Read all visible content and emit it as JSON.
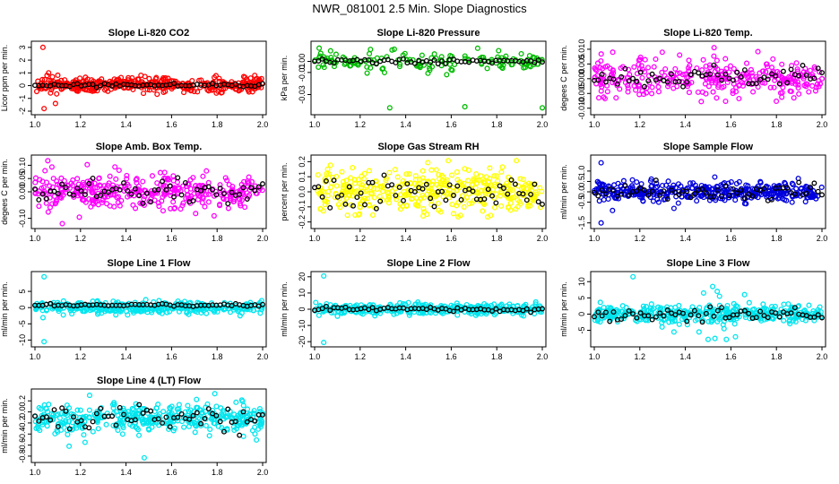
{
  "title": "NWR_081001  2.5 Min. Slope Diagnostics",
  "chart_data": [
    {
      "type": "scatter",
      "title": "Slope Li-820 CO2",
      "ylabel": "Licor ppm per min.",
      "color": "#ff0000",
      "xlim": [
        1.0,
        2.0
      ],
      "ylim": [
        -2,
        3.2
      ],
      "xticks": [
        1.0,
        1.2,
        1.4,
        1.6,
        1.8,
        2.0
      ],
      "yticks": [
        -2,
        -1,
        0,
        1,
        2,
        3
      ],
      "xtick_labels": [
        "1.0",
        "1.2",
        "1.4",
        "1.6",
        "1.8",
        "2.0"
      ],
      "ytick_labels": [
        "-2",
        "-1",
        "0",
        "1",
        "2",
        "3"
      ],
      "spread": 0.28,
      "black_spread": 0.08,
      "center": 0.05,
      "n_points": 400,
      "outliers": [
        [
          1.035,
          3.0
        ],
        [
          1.04,
          -1.8
        ],
        [
          1.09,
          -1.4
        ],
        [
          1.06,
          1.0
        ]
      ]
    },
    {
      "type": "scatter",
      "title": "Slope Li-820 Pressure",
      "ylabel": "kPa per min.",
      "color": "#00bb00",
      "xlim": [
        1.0,
        2.0
      ],
      "ylim": [
        -0.045,
        0.015
      ],
      "xticks": [
        1.0,
        1.2,
        1.4,
        1.6,
        1.8,
        2.0
      ],
      "yticks": [
        0.0,
        -0.01,
        -0.03
      ],
      "xtick_labels": [
        "1.0",
        "1.2",
        "1.4",
        "1.6",
        "1.8",
        "2.0"
      ],
      "ytick_labels": [
        "0.00",
        "-0.01",
        "-0.03"
      ],
      "spread": 0.004,
      "black_spread": 0.001,
      "center": 0.0,
      "n_points": 150,
      "outliers": [
        [
          1.33,
          -0.042
        ],
        [
          1.66,
          -0.041
        ],
        [
          2.0,
          -0.042
        ],
        [
          1.02,
          0.012
        ],
        [
          1.35,
          0.011
        ],
        [
          1.58,
          -0.012
        ]
      ]
    },
    {
      "type": "scatter",
      "title": "Slope Li-820 Temp.",
      "ylabel": "degees C per min.",
      "color": "#ff00ff",
      "xlim": [
        1.0,
        2.0
      ],
      "ylim": [
        -0.011,
        0.0115
      ],
      "xticks": [
        1.0,
        1.2,
        1.4,
        1.6,
        1.8,
        2.0
      ],
      "yticks": [
        -0.01,
        -0.005,
        0.0,
        0.005,
        0.01
      ],
      "xtick_labels": [
        "1.0",
        "1.2",
        "1.4",
        "1.6",
        "1.8",
        "2.0"
      ],
      "ytick_labels": [
        "-0.010",
        "-0.005",
        "0.000",
        "0.005",
        "0.010"
      ],
      "spread": 0.0032,
      "black_spread": 0.0016,
      "center": 0.0005,
      "n_points": 320,
      "outliers": []
    },
    {
      "type": "scatter",
      "title": "Slope Amb. Box Temp.",
      "ylabel": "degees C per min.",
      "color": "#ff00ff",
      "xlim": [
        1.0,
        2.0
      ],
      "ylim": [
        -0.125,
        0.125
      ],
      "xticks": [
        1.0,
        1.2,
        1.4,
        1.6,
        1.8,
        2.0
      ],
      "yticks": [
        -0.1,
        0.0,
        0.05,
        0.1
      ],
      "xtick_labels": [
        "1.0",
        "1.2",
        "1.4",
        "1.6",
        "1.8",
        "2.0"
      ],
      "ytick_labels": [
        "-0.10",
        "0.00",
        "0.05",
        "0.10"
      ],
      "spread": 0.035,
      "black_spread": 0.025,
      "center": 0.0,
      "n_points": 360,
      "outliers": [
        [
          1.12,
          -0.12
        ]
      ]
    },
    {
      "type": "scatter",
      "title": "Slope Gas Stream RH",
      "ylabel": "percent per min.",
      "color": "#ffff00",
      "xlim": [
        1.0,
        2.0
      ],
      "ylim": [
        -0.22,
        0.22
      ],
      "xticks": [
        1.0,
        1.2,
        1.4,
        1.6,
        1.8,
        2.0
      ],
      "yticks": [
        -0.2,
        -0.1,
        0.0,
        0.1,
        0.2
      ],
      "xtick_labels": [
        "1.0",
        "1.2",
        "1.4",
        "1.6",
        "1.8",
        "2.0"
      ],
      "ytick_labels": [
        "-0.2",
        "-0.1",
        "0.0",
        "0.1",
        "0.2"
      ],
      "spread": 0.07,
      "black_spread": 0.05,
      "center": 0.0,
      "n_points": 380,
      "outliers": []
    },
    {
      "type": "scatter",
      "title": "Slope Sample Flow",
      "ylabel": "ml/min per min.",
      "color": "#0000dd",
      "xlim": [
        1.0,
        2.0
      ],
      "ylim": [
        -1.6,
        1.6
      ],
      "xticks": [
        1.0,
        1.2,
        1.4,
        1.6,
        1.8,
        2.0
      ],
      "yticks": [
        -1.5,
        -0.5,
        0.0,
        0.5,
        1.0
      ],
      "xtick_labels": [
        "1.0",
        "1.2",
        "1.4",
        "1.6",
        "1.8",
        "2.0"
      ],
      "ytick_labels": [
        "-1.5",
        "-0.5",
        "0.0",
        "0.5",
        "1.0"
      ],
      "spread": 0.22,
      "black_spread": 0.18,
      "center": 0.0,
      "n_points": 400,
      "outliers": [
        [
          1.03,
          1.4
        ],
        [
          1.03,
          -1.5
        ],
        [
          1.08,
          -0.9
        ],
        [
          1.35,
          -0.8
        ]
      ]
    },
    {
      "type": "scatter",
      "title": "Slope Line 1 Flow",
      "ylabel": "ml/min per min.",
      "color": "#00e5ee",
      "xlim": [
        1.0,
        2.0
      ],
      "ylim": [
        -11,
        10
      ],
      "xticks": [
        1.0,
        1.2,
        1.4,
        1.6,
        1.8,
        2.0
      ],
      "yticks": [
        -10,
        -5,
        0,
        5
      ],
      "xtick_labels": [
        "1.0",
        "1.2",
        "1.4",
        "1.6",
        "1.8",
        "2.0"
      ],
      "ytick_labels": [
        "-10",
        "-5",
        "0",
        "5"
      ],
      "spread": 0.9,
      "black_spread": 0.2,
      "black_center": 0.8,
      "center": 0.0,
      "n_points": 380,
      "outliers": [
        [
          1.04,
          9.5
        ],
        [
          1.04,
          -10.5
        ]
      ]
    },
    {
      "type": "scatter",
      "title": "Slope Line 2 Flow",
      "ylabel": "ml/min per min.",
      "color": "#00e5ee",
      "xlim": [
        1.0,
        2.0
      ],
      "ylim": [
        -21,
        21
      ],
      "xticks": [
        1.0,
        1.2,
        1.4,
        1.6,
        1.8,
        2.0
      ],
      "yticks": [
        -20,
        -10,
        0,
        10,
        20
      ],
      "xtick_labels": [
        "1.0",
        "1.2",
        "1.4",
        "1.6",
        "1.8",
        "2.0"
      ],
      "ytick_labels": [
        "-20",
        "-10",
        "0",
        "10",
        "20"
      ],
      "spread": 1.6,
      "black_spread": 0.6,
      "center": 0.0,
      "n_points": 360,
      "outliers": [
        [
          1.04,
          20.5
        ],
        [
          1.04,
          -20.5
        ]
      ]
    },
    {
      "type": "scatter",
      "title": "Slope Line 3 Flow",
      "ylabel": "ml/min per min.",
      "color": "#00e5ee",
      "xlim": [
        1.0,
        2.0
      ],
      "ylim": [
        -9,
        12
      ],
      "xticks": [
        1.0,
        1.2,
        1.4,
        1.6,
        1.8,
        2.0
      ],
      "yticks": [
        -5,
        0,
        5,
        10
      ],
      "xtick_labels": [
        "1.0",
        "1.2",
        "1.4",
        "1.6",
        "1.8",
        "2.0"
      ],
      "ytick_labels": [
        "-5",
        "0",
        "5",
        "10"
      ],
      "spread": 1.3,
      "black_spread": 1.0,
      "center": 0.0,
      "n_points": 380,
      "outliers": [
        [
          1.17,
          11.5
        ],
        [
          1.52,
          8.5
        ],
        [
          1.54,
          7.0
        ],
        [
          1.5,
          -7.8
        ],
        [
          1.53,
          -7.5
        ],
        [
          1.58,
          -7.8
        ],
        [
          1.46,
          -5.5
        ],
        [
          1.55,
          5.5
        ],
        [
          1.57,
          -4.5
        ],
        [
          1.62,
          -7.0
        ],
        [
          1.66,
          6.0
        ],
        [
          1.35,
          -5.5
        ],
        [
          1.48,
          6.5
        ]
      ]
    },
    {
      "type": "scatter",
      "title": "Slope Line 4 (LT) Flow",
      "ylabel": "ml/min per min.",
      "color": "#00e5ee",
      "xlim": [
        1.0,
        2.0
      ],
      "ylim": [
        -0.85,
        0.35
      ],
      "xticks": [
        1.0,
        1.2,
        1.4,
        1.6,
        1.8,
        2.0
      ],
      "yticks": [
        -0.8,
        -0.6,
        -0.4,
        -0.2,
        0.0,
        0.2
      ],
      "xtick_labels": [
        "1.0",
        "1.2",
        "1.4",
        "1.6",
        "1.8",
        "2.0"
      ],
      "ytick_labels": [
        "-0.8",
        "-0.6",
        "-0.4",
        "-0.2",
        "0.0",
        "0.2"
      ],
      "spread": 0.13,
      "black_spread": 0.1,
      "center": -0.12,
      "n_points": 380,
      "outliers": [
        [
          1.48,
          -0.83
        ],
        [
          1.15,
          -0.62
        ],
        [
          1.22,
          -0.55
        ],
        [
          1.79,
          0.33
        ],
        [
          1.24,
          0.3
        ]
      ]
    }
  ]
}
